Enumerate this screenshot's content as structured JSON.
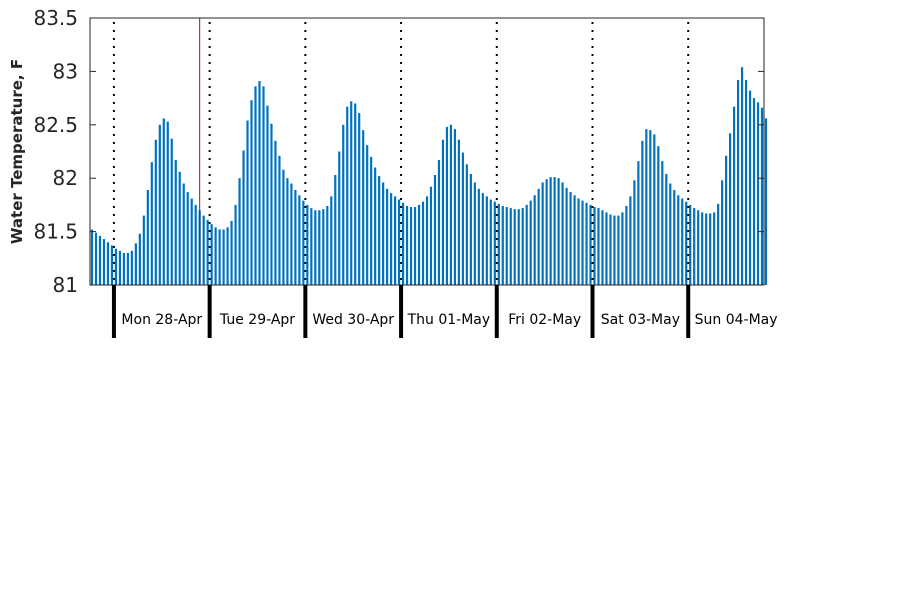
{
  "chart_data": {
    "type": "bar",
    "ylabel": "Water Temperature, F",
    "ylim": [
      81,
      83.5
    ],
    "yticks": [
      "81",
      "81.5",
      "82",
      "82.5",
      "83",
      "83.5"
    ],
    "x_start": "2025-04-27 18:00",
    "x_end": "2025-05-04 19:00",
    "interval_hours": 1,
    "day_labels": [
      "Mon 28-Apr",
      "Tue 29-Apr",
      "Wed 30-Apr",
      "Thu 01-May",
      "Fri 02-May",
      "Sat 03-May",
      "Sun 04-May"
    ],
    "day_boundaries": [
      "2025-04-28 00:00",
      "2025-04-29 00:00",
      "2025-04-30 00:00",
      "2025-05-01 00:00",
      "2025-05-02 00:00",
      "2025-05-03 00:00",
      "2025-05-04 00:00"
    ],
    "current_time_marker": "2025-04-28 21:30",
    "grid": false,
    "colors": {
      "bar": "#0072bd",
      "marker": "#a2142f",
      "axis": "#262626",
      "boundary": "#000000"
    },
    "series": [
      {
        "values": [
          81.52,
          81.49,
          81.46,
          81.43,
          81.4,
          81.37,
          81.34,
          81.32,
          81.3,
          81.3,
          81.32,
          81.39,
          81.48,
          81.65,
          81.89,
          82.15,
          82.36,
          82.5,
          82.56,
          82.53,
          82.37,
          82.17,
          82.06,
          81.95,
          81.87,
          81.81,
          81.75,
          81.7,
          81.65,
          81.61,
          81.57,
          81.54,
          81.52,
          81.52,
          81.54,
          81.6,
          81.75,
          82.0,
          82.26,
          82.54,
          82.73,
          82.86,
          82.91,
          82.86,
          82.68,
          82.51,
          82.35,
          82.21,
          82.08,
          82.0,
          81.95,
          81.89,
          81.84,
          81.79,
          81.75,
          81.72,
          81.7,
          81.7,
          81.71,
          81.74,
          81.83,
          82.03,
          82.25,
          82.5,
          82.67,
          82.72,
          82.7,
          82.61,
          82.45,
          82.31,
          82.2,
          82.1,
          82.02,
          81.96,
          81.9,
          81.86,
          81.83,
          81.8,
          81.77,
          81.74,
          81.73,
          81.73,
          81.75,
          81.78,
          81.83,
          81.92,
          82.03,
          82.17,
          82.36,
          82.48,
          82.5,
          82.46,
          82.36,
          82.24,
          82.13,
          82.04,
          81.96,
          81.9,
          81.86,
          81.83,
          81.8,
          81.78,
          81.76,
          81.74,
          81.73,
          81.72,
          81.71,
          81.71,
          81.72,
          81.75,
          81.79,
          81.84,
          81.9,
          81.96,
          81.99,
          82.01,
          82.01,
          82.0,
          81.96,
          81.91,
          81.87,
          81.84,
          81.81,
          81.79,
          81.77,
          81.75,
          81.73,
          81.72,
          81.7,
          81.68,
          81.66,
          81.65,
          81.65,
          81.68,
          81.74,
          81.83,
          81.98,
          82.16,
          82.35,
          82.46,
          82.45,
          82.41,
          82.3,
          82.16,
          82.04,
          81.95,
          81.89,
          81.84,
          81.81,
          81.78,
          81.75,
          81.72,
          81.7,
          81.68,
          81.67,
          81.67,
          81.68,
          81.76,
          81.98,
          82.21,
          82.42,
          82.67,
          82.92,
          83.04,
          82.92,
          82.82,
          82.75,
          82.71,
          82.66,
          82.56
        ]
      }
    ]
  }
}
